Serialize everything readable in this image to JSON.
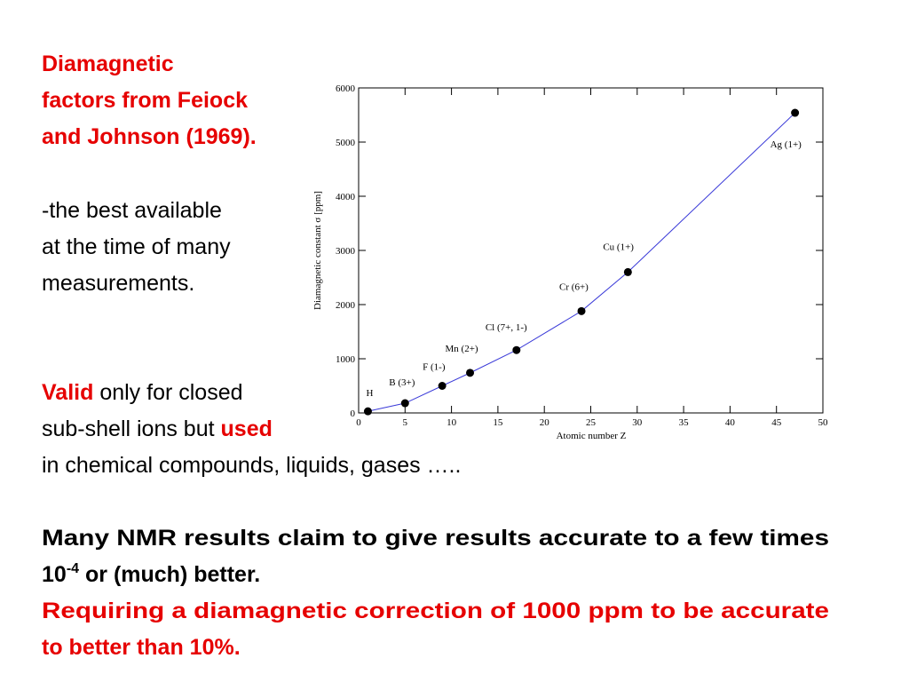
{
  "slide": {
    "lines": [
      [
        {
          "text": "Diamagnetic",
          "red": true,
          "bold": true
        }
      ],
      [
        {
          "text": "factors from Feiock",
          "red": true,
          "bold": true
        }
      ],
      [
        {
          "text": "and Johnson (1969).",
          "red": true,
          "bold": true
        }
      ],
      [
        {
          "text": "-the best available",
          "red": false,
          "bold": false
        }
      ],
      [
        {
          "text": "at the time of many",
          "red": false,
          "bold": false
        }
      ],
      [
        {
          "text": "measurements.",
          "red": false,
          "bold": false
        }
      ],
      [
        {
          "text": "Valid",
          "red": true,
          "bold": true
        },
        {
          "text": " only for closed",
          "red": false,
          "bold": false
        }
      ],
      [
        {
          "text": "sub-shell ions but ",
          "red": false,
          "bold": false
        },
        {
          "text": "used",
          "red": true,
          "bold": true
        }
      ],
      [
        {
          "text": "in chemical compounds, liquids, gases …..",
          "red": false,
          "bold": false
        }
      ],
      [
        {
          "text": "Many NMR results claim to give results accurate to a few times",
          "red": false,
          "bold": true
        }
      ],
      [
        {
          "text": "10",
          "red": false,
          "bold": true
        },
        {
          "text": "-4",
          "red": false,
          "bold": true,
          "sup": true
        },
        {
          "text": " or (much) better.",
          "red": false,
          "bold": true
        }
      ],
      [
        {
          "text": "Requiring a diamagnetic correction of 1000 ppm to be accurate",
          "red": true,
          "bold": true
        }
      ],
      [
        {
          "text": "to better than 10%.",
          "red": true,
          "bold": true
        }
      ]
    ]
  },
  "chart_data": {
    "type": "scatter",
    "x_label": "Atomic number Z",
    "y_label": "Diamagnetic constant σ [ppm]",
    "x": [
      1,
      5,
      9,
      12,
      17,
      24,
      29,
      47
    ],
    "series": [
      {
        "values": [
          30,
          180,
          500,
          740,
          1160,
          1880,
          2600,
          5540
        ],
        "color": "#000000",
        "line_color": "#3a3ad8"
      }
    ],
    "point_labels": [
      "H",
      "B (3+)",
      "F (1-)",
      "Mn (2+)",
      "Cl (7+, 1-)",
      "Cr (6+)",
      "Cu (1+)",
      "Ag (1+)"
    ],
    "xlim": [
      0,
      50
    ],
    "xticks": [
      0,
      5,
      10,
      15,
      20,
      25,
      30,
      35,
      40,
      45,
      50
    ],
    "ylim": [
      0,
      6000
    ],
    "yticks": [
      0,
      1000,
      2000,
      3000,
      4000,
      5000,
      6000
    ]
  }
}
